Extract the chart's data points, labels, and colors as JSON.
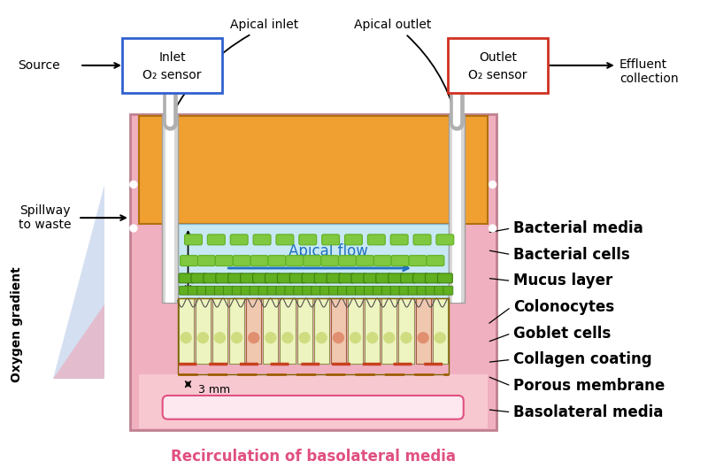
{
  "bg_color": "#ffffff",
  "colors": {
    "orange": "#f0a030",
    "pink_outer": "#f0b0c0",
    "pink_basal": "#f8c8d0",
    "blue_apical": "#c8e8f4",
    "green_bact1": "#80c840",
    "green_bact2": "#60b020",
    "yellow_cell": "#eef4c0",
    "yellow_cell_edge": "#909050",
    "pink_goblet": "#f0c8b0",
    "nucleus_yellow": "#d0dc80",
    "nucleus_goblet": "#e09070",
    "gray_wall": "#d8d8d8",
    "gray_wall_edge": "#a0a0a0",
    "white": "#ffffff",
    "membrane_dash": "#c84020",
    "porous_dash": "#c06000",
    "wave_color": "#505050",
    "recirc_fill": "#fce8ee",
    "recirc_edge": "#e05080",
    "inlet_box_edge": "#3060d0",
    "outlet_box_edge": "#d03020",
    "arrow_blue": "#2070c0",
    "tri_blue": "#a0b8e0",
    "tri_pink": "#f0a0b0"
  },
  "labels": {
    "bacterial_media": "Bacterial media",
    "bacterial_cells": "Bacterial cells",
    "mucus_layer": "Mucus layer",
    "colonocytes": "Colonocytes",
    "goblet_cells": "Goblet cells",
    "collagen_coating": "Collagen coating",
    "porous_membrane": "Porous membrane",
    "basolateral_media": "Basolateral media",
    "apical_flow": "Apical flow",
    "source": "Source",
    "apical_inlet": "Apical inlet",
    "apical_outlet": "Apical outlet",
    "effluent_collection": "Effluent\ncollection",
    "spillway": "Spillway\nto waste",
    "oxygen_gradient": "Oxygen gradient",
    "recirculation": "Recirculation of basolateral media",
    "inlet_line1": "Inlet",
    "inlet_line2": "O₂ sensor",
    "outlet_line1": "Outlet",
    "outlet_line2": "O₂ sensor",
    "three_mm": "3 mm"
  }
}
